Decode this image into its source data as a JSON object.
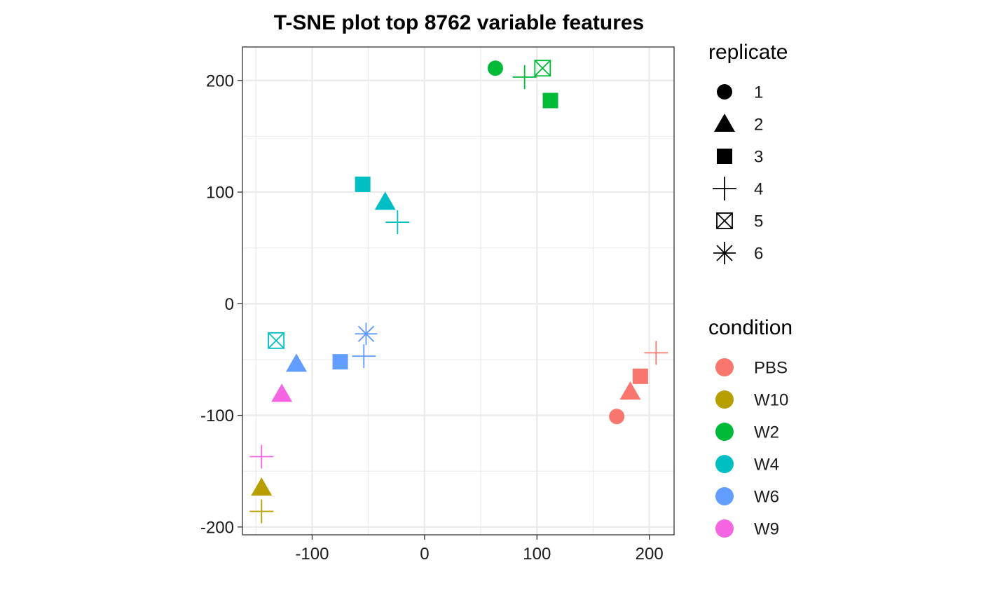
{
  "chart_data": {
    "type": "scatter",
    "title": "T-SNE plot top 8762 variable features",
    "xlabel": "",
    "ylabel": "",
    "xlim": [
      -162,
      222
    ],
    "ylim": [
      -207,
      230
    ],
    "x_ticks": [
      -100,
      0,
      100,
      200
    ],
    "y_ticks": [
      -200,
      -100,
      0,
      100,
      200
    ],
    "x_tick_labels": [
      "-100",
      "0",
      "100",
      "200"
    ],
    "y_tick_labels": [
      "-200",
      "-100",
      "0",
      "100",
      "200"
    ],
    "grid": true,
    "legend_position": "right",
    "legends": [
      {
        "title": "replicate",
        "kind": "shape",
        "entries": [
          {
            "label": "1",
            "shape": "circle"
          },
          {
            "label": "2",
            "shape": "triangle"
          },
          {
            "label": "3",
            "shape": "square"
          },
          {
            "label": "4",
            "shape": "plus"
          },
          {
            "label": "5",
            "shape": "boxx"
          },
          {
            "label": "6",
            "shape": "star"
          }
        ]
      },
      {
        "title": "condition",
        "kind": "color",
        "entries": [
          {
            "label": "PBS",
            "color": "#F8766D"
          },
          {
            "label": "W10",
            "color": "#B79F00"
          },
          {
            "label": "W2",
            "color": "#00BA38"
          },
          {
            "label": "W4",
            "color": "#00BFC4"
          },
          {
            "label": "W6",
            "color": "#619CFF"
          },
          {
            "label": "W9",
            "color": "#F564E3"
          }
        ]
      }
    ],
    "points": [
      {
        "condition": "PBS",
        "replicate": "1",
        "x": 171,
        "y": -101
      },
      {
        "condition": "PBS",
        "replicate": "2",
        "x": 183,
        "y": -79
      },
      {
        "condition": "PBS",
        "replicate": "3",
        "x": 192,
        "y": -65
      },
      {
        "condition": "PBS",
        "replicate": "4",
        "x": 206,
        "y": -44
      },
      {
        "condition": "W10",
        "replicate": "2",
        "x": -145,
        "y": -165
      },
      {
        "condition": "W10",
        "replicate": "4",
        "x": -145,
        "y": -186
      },
      {
        "condition": "W2",
        "replicate": "1",
        "x": 63,
        "y": 211
      },
      {
        "condition": "W2",
        "replicate": "4",
        "x": 89,
        "y": 203
      },
      {
        "condition": "W2",
        "replicate": "5",
        "x": 105,
        "y": 211
      },
      {
        "condition": "W2",
        "replicate": "3",
        "x": 112,
        "y": 182
      },
      {
        "condition": "W4",
        "replicate": "3",
        "x": -55,
        "y": 107
      },
      {
        "condition": "W4",
        "replicate": "2",
        "x": -35,
        "y": 91
      },
      {
        "condition": "W4",
        "replicate": "4",
        "x": -24,
        "y": 73
      },
      {
        "condition": "W4",
        "replicate": "5",
        "x": -132,
        "y": -33
      },
      {
        "condition": "W6",
        "replicate": "2",
        "x": -114,
        "y": -54
      },
      {
        "condition": "W6",
        "replicate": "3",
        "x": -75,
        "y": -52
      },
      {
        "condition": "W6",
        "replicate": "4",
        "x": -54,
        "y": -47
      },
      {
        "condition": "W6",
        "replicate": "6",
        "x": -52,
        "y": -27
      },
      {
        "condition": "W9",
        "replicate": "2",
        "x": -127,
        "y": -81
      },
      {
        "condition": "W9",
        "replicate": "4",
        "x": -145,
        "y": -137
      }
    ]
  }
}
